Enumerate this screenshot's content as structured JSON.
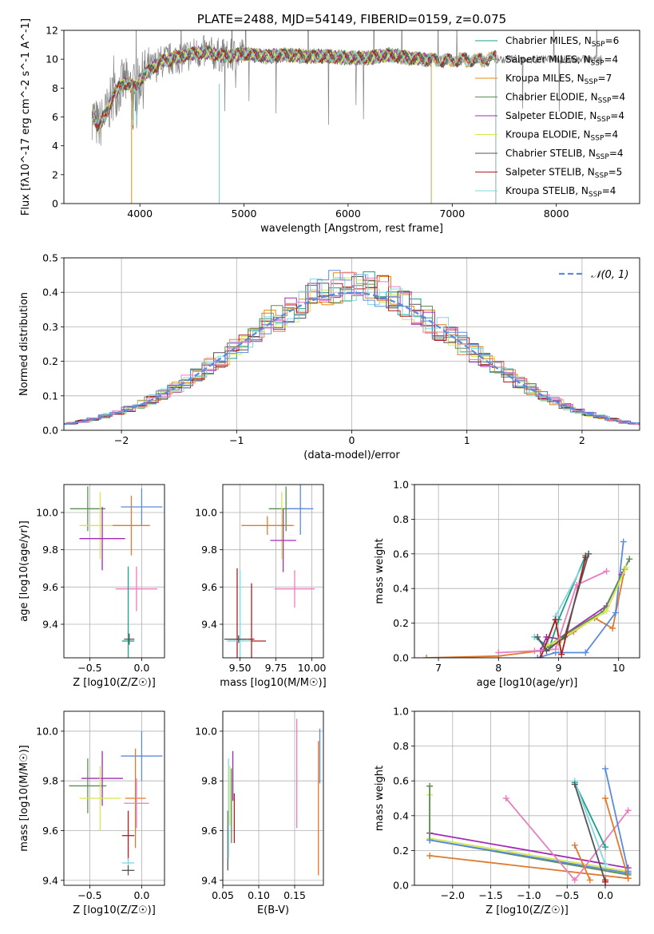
{
  "colors": {
    "chabrier_miles": "#1f9e89",
    "salpeter_miles": "#e07a2e",
    "kroupa_miles": "#e38e10",
    "chabrier_elodie": "#5a8f52",
    "salpeter_elodie": "#a32ab8",
    "kroupa_elodie": "#d6e84e",
    "chabrier_stelib": "#555555",
    "salpeter_stelib": "#b01c1c",
    "kroupa_stelib": "#7fd8df",
    "extra_blue": "#5b8bdc",
    "extra_pink": "#e77ec0",
    "data_gray": "#808080",
    "normal_curve": "#5b8bdc"
  },
  "chart_data": [
    {
      "id": "spectrum",
      "type": "line",
      "title": "PLATE=2488, MJD=54149, FIBERID=0159, z=0.075",
      "xlabel": "wavelength [Angstrom, rest frame]",
      "ylabel": "Flux [fλ10^-17 erg cm^-2 s^-1 A^-1]",
      "xlim": [
        3270,
        8800
      ],
      "ylim": [
        0,
        12
      ],
      "xticks": [
        "4000",
        "5000",
        "6000",
        "7000",
        "8000"
      ],
      "yticks": [
        "0",
        "2",
        "4",
        "6",
        "8",
        "10",
        "12"
      ],
      "grid": false,
      "legend_position": "right",
      "spectrum_anchors": [
        [
          3540,
          6.2
        ],
        [
          3600,
          5.3
        ],
        [
          3680,
          6.3
        ],
        [
          3750,
          7.6
        ],
        [
          3850,
          8.4
        ],
        [
          3950,
          8.0
        ],
        [
          4050,
          9.0
        ],
        [
          4200,
          9.8
        ],
        [
          4400,
          10.2
        ],
        [
          4600,
          10.5
        ],
        [
          4861,
          10.2
        ],
        [
          5000,
          10.4
        ],
        [
          5200,
          10.2
        ],
        [
          5400,
          10.3
        ],
        [
          5600,
          10.2
        ],
        [
          5800,
          10.2
        ],
        [
          6000,
          10.1
        ],
        [
          6200,
          10.1
        ],
        [
          6400,
          10.3
        ],
        [
          6563,
          10.1
        ],
        [
          6700,
          10.0
        ],
        [
          6900,
          9.9
        ],
        [
          7100,
          9.95
        ],
        [
          7300,
          9.95
        ],
        [
          7420,
          10.1
        ]
      ],
      "series": [
        {
          "name": "Chabrier MILES, NSSP=6",
          "color_key": "chabrier_miles",
          "xmax": 7420
        },
        {
          "name": "Salpeter MILES, NSSP=4",
          "color_key": "salpeter_miles",
          "xmax": 7420
        },
        {
          "name": "Kroupa MILES, NSSP=7",
          "color_key": "kroupa_miles",
          "xmax": 7420
        },
        {
          "name": "Chabrier ELODIE, NSSP=4",
          "color_key": "chabrier_elodie",
          "xmax": 6800
        },
        {
          "name": "Salpeter ELODIE, NSSP=4",
          "color_key": "salpeter_elodie",
          "xmax": 6800
        },
        {
          "name": "Kroupa ELODIE, NSSP=4",
          "color_key": "kroupa_elodie",
          "xmax": 6800
        },
        {
          "name": "Chabrier STELIB, NSSP=4",
          "color_key": "chabrier_stelib",
          "xmax": 7420
        },
        {
          "name": "Salpeter STELIB, NSSP=5",
          "color_key": "salpeter_stelib",
          "xmax": 7420
        },
        {
          "name": "Kroupa STELIB, NSSP=4",
          "color_key": "kroupa_stelib",
          "xmax": 7420
        }
      ]
    },
    {
      "id": "residuals",
      "type": "line",
      "xlabel": "(data-model)/error",
      "ylabel": "Normed distribution",
      "xlim": [
        -2.5,
        2.5
      ],
      "ylim": [
        0,
        0.5
      ],
      "xticks": [
        "−2",
        "−1",
        "0",
        "1",
        "2"
      ],
      "yticks": [
        "0.0",
        "0.1",
        "0.2",
        "0.3",
        "0.4",
        "0.5"
      ],
      "grid": true,
      "legend_position": "upper right",
      "legend_label": "𝒩(0, 1)",
      "bin_width": 0.1,
      "series_color_keys": [
        "chabrier_miles",
        "salpeter_miles",
        "kroupa_miles",
        "chabrier_elodie",
        "salpeter_elodie",
        "kroupa_elodie",
        "chabrier_stelib",
        "salpeter_stelib",
        "kroupa_stelib",
        "extra_blue",
        "extra_pink"
      ]
    },
    {
      "id": "age_vs_z",
      "type": "scatter",
      "xlabel": "Z [log10(Z/Z☉)]",
      "ylabel": "age  [log10(age/yr)]",
      "xlim": [
        -0.75,
        0.22
      ],
      "ylim": [
        9.22,
        10.15
      ],
      "xticks": [
        "−0.5",
        "0.0"
      ],
      "yticks": [
        "9.4",
        "9.6",
        "9.8",
        "10.0"
      ],
      "grid": true,
      "points": [
        {
          "x": -0.52,
          "y": 10.02,
          "xerr": 0.17,
          "yerr": 0.12,
          "color_key": "chabrier_elodie"
        },
        {
          "x": 0.0,
          "y": 10.03,
          "xerr": 0.2,
          "yerr": 0.1,
          "color_key": "extra_blue"
        },
        {
          "x": -0.4,
          "y": 9.93,
          "xerr": 0.2,
          "yerr": 0.18,
          "color_key": "kroupa_elodie"
        },
        {
          "x": -0.1,
          "y": 9.93,
          "xerr": 0.18,
          "yerr": 0.16,
          "color_key": "salpeter_miles"
        },
        {
          "x": -0.38,
          "y": 9.86,
          "xerr": 0.22,
          "yerr": 0.17,
          "color_key": "salpeter_elodie"
        },
        {
          "x": -0.05,
          "y": 9.59,
          "xerr": 0.2,
          "yerr": 0.12,
          "color_key": "extra_pink"
        },
        {
          "x": -0.13,
          "y": 9.31,
          "xerr": 0.06,
          "yerr": 0.4,
          "color_key": "chabrier_miles"
        },
        {
          "x": -0.12,
          "y": 9.32,
          "xerr": 0.05,
          "yerr": 0.03,
          "color_key": "chabrier_stelib"
        }
      ]
    },
    {
      "id": "age_vs_mass",
      "type": "scatter",
      "xlabel": "mass [log10(M/M☉)]",
      "ylabel": "",
      "xlim": [
        9.38,
        10.08
      ],
      "ylim": [
        9.22,
        10.15
      ],
      "xticks": [
        "9.50",
        "9.75",
        "10.00"
      ],
      "yticks": [
        "9.4",
        "9.6",
        "9.8",
        "10.0"
      ],
      "grid": true,
      "points": [
        {
          "x": 9.82,
          "y": 10.02,
          "xerr": 0.12,
          "yerr": 0.12,
          "color_key": "chabrier_elodie"
        },
        {
          "x": 9.92,
          "y": 10.02,
          "xerr": 0.09,
          "yerr": 0.14,
          "color_key": "extra_blue"
        },
        {
          "x": 9.79,
          "y": 9.93,
          "xerr": 0.09,
          "yerr": 0.18,
          "color_key": "kroupa_elodie"
        },
        {
          "x": 9.69,
          "y": 9.93,
          "xerr": 0.18,
          "yerr": 0.05,
          "color_key": "salpeter_miles"
        },
        {
          "x": 9.8,
          "y": 9.85,
          "xerr": 0.09,
          "yerr": 0.17,
          "color_key": "salpeter_elodie"
        },
        {
          "x": 9.88,
          "y": 9.59,
          "xerr": 0.14,
          "yerr": 0.1,
          "color_key": "extra_pink"
        },
        {
          "x": 9.48,
          "y": 9.32,
          "xerr": 0.06,
          "yerr": 0.38,
          "color_key": "salpeter_stelib"
        },
        {
          "x": 9.5,
          "y": 9.31,
          "xerr": 0.09,
          "yerr": 0.38,
          "color_key": "kroupa_stelib"
        },
        {
          "x": 9.49,
          "y": 9.32,
          "xerr": 0.1,
          "yerr": 0.02,
          "color_key": "chabrier_stelib"
        },
        {
          "x": 9.58,
          "y": 9.32,
          "xerr": 0.02,
          "yerr": 0.3,
          "color_key": "salpeter_stelib"
        },
        {
          "x": 9.63,
          "y": 9.31,
          "xerr": 0.05,
          "yerr": 0.0,
          "color_key": "salpeter_stelib"
        }
      ]
    },
    {
      "id": "weight_vs_age",
      "type": "line",
      "xlabel": "age  [log10(age/yr)]",
      "ylabel": "mass weight",
      "xlim": [
        6.6,
        10.35
      ],
      "ylim": [
        0,
        1
      ],
      "xticks": [
        "7",
        "8",
        "9",
        "10"
      ],
      "yticks": [
        "0.0",
        "0.2",
        "0.4",
        "0.6",
        "0.8",
        "1.0"
      ],
      "grid": true,
      "series": [
        {
          "color_key": "salpeter_miles",
          "points": [
            [
              6.8,
              0.0
            ],
            [
              8.0,
              0.01
            ],
            [
              8.7,
              0.04
            ],
            [
              9.0,
              0.09
            ],
            [
              9.25,
              0.15
            ],
            [
              9.6,
              0.23
            ],
            [
              9.9,
              0.17
            ],
            [
              10.1,
              0.51
            ]
          ]
        },
        {
          "color_key": "extra_blue",
          "points": [
            [
              8.65,
              0.0
            ],
            [
              8.95,
              0.03
            ],
            [
              9.45,
              0.03
            ],
            [
              9.95,
              0.26
            ],
            [
              10.08,
              0.67
            ]
          ]
        },
        {
          "color_key": "chabrier_miles",
          "points": [
            [
              8.6,
              0.12
            ],
            [
              8.85,
              0.06
            ],
            [
              9.0,
              0.22
            ],
            [
              9.45,
              0.59
            ]
          ]
        },
        {
          "color_key": "kroupa_stelib",
          "points": [
            [
              8.6,
              0.12
            ],
            [
              8.8,
              0.06
            ],
            [
              8.95,
              0.24
            ],
            [
              9.5,
              0.6
            ]
          ]
        },
        {
          "color_key": "salpeter_elodie",
          "points": [
            [
              8.7,
              0.04
            ],
            [
              8.8,
              0.12
            ],
            [
              9.0,
              0.11
            ],
            [
              9.8,
              0.3
            ],
            [
              10.05,
              0.48
            ]
          ]
        },
        {
          "color_key": "chabrier_elodie",
          "points": [
            [
              8.8,
              0.06
            ],
            [
              9.0,
              0.11
            ],
            [
              9.75,
              0.27
            ],
            [
              10.18,
              0.57
            ]
          ]
        },
        {
          "color_key": "kroupa_elodie",
          "points": [
            [
              8.8,
              0.07
            ],
            [
              9.0,
              0.1
            ],
            [
              9.8,
              0.27
            ],
            [
              10.12,
              0.52
            ]
          ]
        },
        {
          "color_key": "salpeter_stelib",
          "points": [
            [
              8.7,
              0.0
            ],
            [
              8.95,
              0.22
            ],
            [
              9.05,
              0.02
            ],
            [
              9.45,
              0.58
            ]
          ]
        },
        {
          "color_key": "extra_pink",
          "points": [
            [
              8.0,
              0.03
            ],
            [
              8.6,
              0.04
            ],
            [
              8.95,
              0.05
            ],
            [
              9.3,
              0.42
            ],
            [
              9.8,
              0.5
            ]
          ]
        },
        {
          "color_key": "chabrier_stelib",
          "points": [
            [
              8.65,
              0.12
            ],
            [
              8.8,
              0.04
            ],
            [
              9.1,
              0.12
            ],
            [
              9.5,
              0.6
            ]
          ]
        }
      ]
    },
    {
      "id": "mass_vs_z",
      "type": "scatter",
      "xlabel": "Z [log10(Z/Z☉)]",
      "ylabel": "mass [log10(M/M☉)]",
      "xlim": [
        -0.75,
        0.22
      ],
      "ylim": [
        9.38,
        10.08
      ],
      "xticks": [
        "−0.5",
        "0.0"
      ],
      "yticks": [
        "9.4",
        "9.6",
        "9.8",
        "10.0"
      ],
      "grid": true,
      "points": [
        {
          "x": 0.0,
          "y": 9.9,
          "xerr": 0.2,
          "yerr": 0.1,
          "color_key": "extra_blue"
        },
        {
          "x": -0.38,
          "y": 9.81,
          "xerr": 0.2,
          "yerr": 0.11,
          "color_key": "salpeter_elodie"
        },
        {
          "x": -0.52,
          "y": 9.78,
          "xerr": 0.18,
          "yerr": 0.11,
          "color_key": "chabrier_elodie"
        },
        {
          "x": -0.4,
          "y": 9.73,
          "xerr": 0.2,
          "yerr": 0.13,
          "color_key": "kroupa_elodie"
        },
        {
          "x": -0.06,
          "y": 9.73,
          "xerr": 0.1,
          "yerr": 0.2,
          "color_key": "salpeter_miles"
        },
        {
          "x": -0.05,
          "y": 9.71,
          "xerr": 0.12,
          "yerr": 0.1,
          "color_key": "extra_pink"
        },
        {
          "x": -0.13,
          "y": 9.58,
          "xerr": 0.06,
          "yerr": 0.1,
          "color_key": "salpeter_stelib"
        },
        {
          "x": -0.13,
          "y": 9.47,
          "xerr": 0.06,
          "yerr": 0.02,
          "color_key": "kroupa_stelib"
        },
        {
          "x": -0.13,
          "y": 9.44,
          "xerr": 0.06,
          "yerr": 0.02,
          "color_key": "chabrier_stelib"
        }
      ]
    },
    {
      "id": "mass_vs_ebv",
      "type": "scatter",
      "xlabel": "E(B-V)",
      "ylabel": "",
      "xlim": [
        0.05,
        0.19
      ],
      "ylim": [
        9.38,
        10.08
      ],
      "xticks": [
        "0.05",
        "0.10",
        "0.15"
      ],
      "yticks": [
        "9.4",
        "9.6",
        "9.8",
        "10.0"
      ],
      "grid": true,
      "points": [
        {
          "x": 0.057,
          "y": 9.56,
          "yerr": 0.12,
          "color_key": "chabrier_stelib"
        },
        {
          "x": 0.058,
          "y": 9.69,
          "yerr": 0.2,
          "color_key": "kroupa_stelib"
        },
        {
          "x": 0.06,
          "y": 9.74,
          "yerr": 0.12,
          "color_key": "kroupa_elodie"
        },
        {
          "x": 0.064,
          "y": 9.82,
          "yerr": 0.1,
          "color_key": "salpeter_elodie"
        },
        {
          "x": 0.066,
          "y": 9.65,
          "yerr": 0.1,
          "color_key": "salpeter_stelib"
        },
        {
          "x": 0.062,
          "y": 9.7,
          "yerr": 0.15,
          "color_key": "chabrier_elodie"
        },
        {
          "x": 0.153,
          "y": 9.83,
          "yerr": 0.22,
          "color_key": "extra_pink"
        },
        {
          "x": 0.183,
          "y": 9.69,
          "yerr": 0.27,
          "color_key": "salpeter_miles"
        },
        {
          "x": 0.185,
          "y": 9.9,
          "yerr": 0.11,
          "color_key": "extra_blue"
        }
      ]
    },
    {
      "id": "weight_vs_z",
      "type": "line",
      "xlabel": "Z [log10(Z/Z☉)]",
      "ylabel": "mass weight",
      "xlim": [
        -2.5,
        0.45
      ],
      "ylim": [
        0,
        1
      ],
      "xticks": [
        "−2.0",
        "−1.5",
        "−1.0",
        "−0.5",
        "0.0"
      ],
      "yticks": [
        "0.0",
        "0.2",
        "0.4",
        "0.6",
        "0.8",
        "1.0"
      ],
      "grid": true,
      "series": [
        {
          "color_key": "salpeter_elodie",
          "points": [
            [
              -2.3,
              0.3
            ],
            [
              0.3,
              0.1
            ]
          ]
        },
        {
          "color_key": "kroupa_elodie",
          "points": [
            [
              -2.3,
              0.52
            ],
            [
              -2.3,
              0.27
            ],
            [
              0.3,
              0.08
            ]
          ]
        },
        {
          "color_key": "chabrier_elodie",
          "points": [
            [
              -2.3,
              0.57
            ],
            [
              -2.3,
              0.26
            ],
            [
              0.3,
              0.06
            ]
          ]
        },
        {
          "color_key": "extra_blue",
          "points": [
            [
              -2.3,
              0.26
            ],
            [
              0.3,
              0.07
            ]
          ]
        },
        {
          "color_key": "salpeter_miles",
          "points": [
            [
              -2.3,
              0.17
            ],
            [
              0.3,
              0.04
            ]
          ]
        },
        {
          "color_key": "extra_pink",
          "points": [
            [
              -1.3,
              0.5
            ],
            [
              -0.4,
              0.03
            ],
            [
              0.3,
              0.43
            ]
          ]
        },
        {
          "color_key": "extra_blue",
          "points": [
            [
              0.0,
              0.67
            ],
            [
              0.3,
              0.08
            ]
          ]
        },
        {
          "color_key": "salpeter_miles",
          "points": [
            [
              0.0,
              0.5
            ],
            [
              0.3,
              0.04
            ]
          ]
        },
        {
          "color_key": "salpeter_miles",
          "points": [
            [
              -0.4,
              0.23
            ],
            [
              -0.2,
              0.03
            ]
          ]
        },
        {
          "color_key": "chabrier_miles",
          "points": [
            [
              -0.4,
              0.59
            ],
            [
              0.0,
              0.22
            ]
          ]
        },
        {
          "color_key": "kroupa_stelib",
          "points": [
            [
              -0.4,
              0.6
            ],
            [
              0.0,
              0.12
            ]
          ]
        },
        {
          "color_key": "chabrier_stelib",
          "points": [
            [
              -0.4,
              0.58
            ],
            [
              0.0,
              0.02
            ]
          ]
        },
        {
          "color_key": "salpeter_stelib",
          "points": [
            [
              0.0,
              0.02
            ],
            [
              0.0,
              0.03
            ]
          ]
        }
      ]
    }
  ]
}
